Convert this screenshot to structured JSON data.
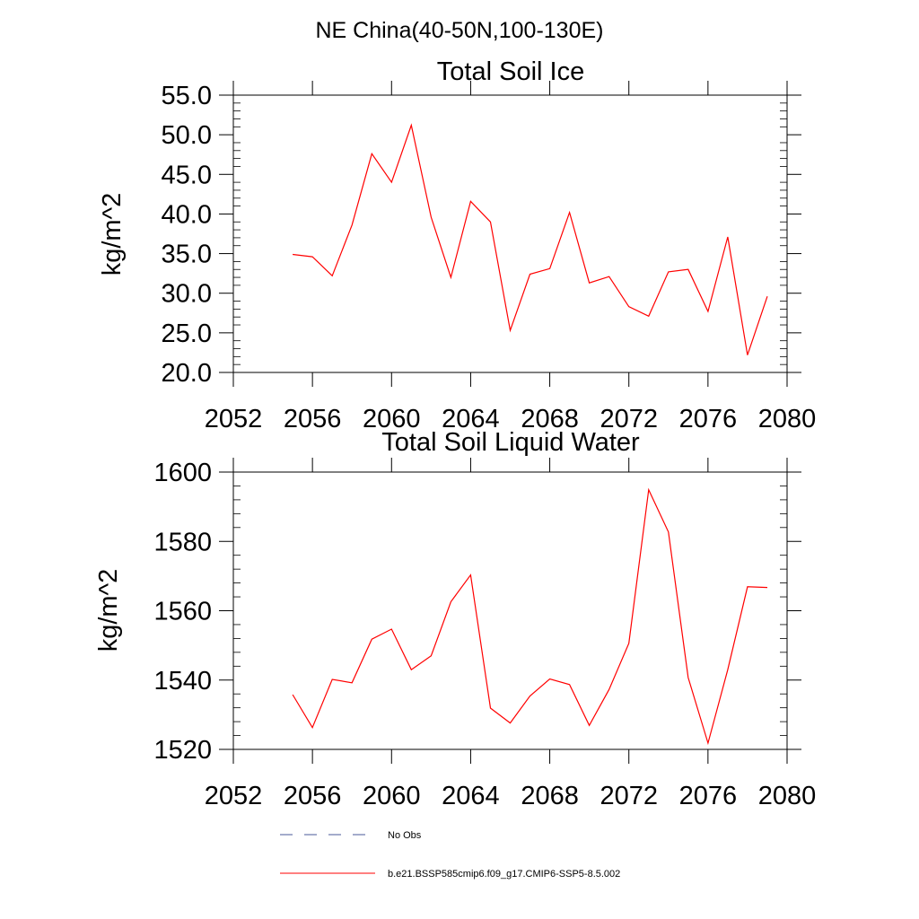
{
  "figure_title": "NE China(40-50N,100-130E)",
  "chart_data": [
    {
      "type": "line",
      "title": "Total Soil Ice",
      "xlabel": "",
      "ylabel": "kg/m^2",
      "xlim": [
        2052,
        2080
      ],
      "ylim": [
        20.0,
        55.0
      ],
      "xticks": [
        "2052",
        "2056",
        "2060",
        "2064",
        "2068",
        "2072",
        "2076",
        "2080"
      ],
      "yticks": [
        "20.0",
        "25.0",
        "30.0",
        "35.0",
        "40.0",
        "45.0",
        "50.0",
        "55.0"
      ],
      "series": [
        {
          "name": "b.e21.BSSP585cmip6.f09_g17.CMIP6-SSP5-8.5.002",
          "color": "#ff0000",
          "x": [
            2055,
            2056,
            2057,
            2058,
            2059,
            2060,
            2061,
            2062,
            2063,
            2064,
            2065,
            2066,
            2067,
            2068,
            2069,
            2070,
            2071,
            2072,
            2073,
            2074,
            2075,
            2076,
            2077,
            2078,
            2079
          ],
          "values": [
            34.9,
            34.6,
            32.2,
            38.6,
            47.6,
            44.0,
            51.2,
            39.6,
            32.0,
            41.6,
            39.0,
            25.3,
            32.4,
            33.1,
            40.2,
            31.3,
            32.1,
            28.3,
            27.1,
            32.7,
            33.0,
            27.7,
            37.1,
            22.2,
            29.6
          ]
        }
      ]
    },
    {
      "type": "line",
      "title": "Total Soil Liquid Water",
      "xlabel": "",
      "ylabel": "kg/m^2",
      "xlim": [
        2052,
        2080
      ],
      "ylim": [
        1520,
        1600
      ],
      "xticks": [
        "2052",
        "2056",
        "2060",
        "2064",
        "2068",
        "2072",
        "2076",
        "2080"
      ],
      "yticks": [
        "1520",
        "1540",
        "1560",
        "1580",
        "1600"
      ],
      "series": [
        {
          "name": "b.e21.BSSP585cmip6.f09_g17.CMIP6-SSP5-8.5.002",
          "color": "#ff0000",
          "x": [
            2055,
            2056,
            2057,
            2058,
            2059,
            2060,
            2061,
            2062,
            2063,
            2064,
            2065,
            2066,
            2067,
            2068,
            2069,
            2070,
            2071,
            2072,
            2073,
            2074,
            2075,
            2076,
            2077,
            2078,
            2079
          ],
          "values": [
            1535.8,
            1526.3,
            1540.2,
            1539.2,
            1551.8,
            1554.7,
            1543.0,
            1547.0,
            1562.6,
            1570.3,
            1531.9,
            1527.6,
            1535.4,
            1540.3,
            1538.7,
            1526.9,
            1537.3,
            1550.6,
            1594.9,
            1582.7,
            1540.7,
            1521.8,
            1543.0,
            1566.9,
            1566.7
          ]
        }
      ]
    }
  ],
  "legend": [
    {
      "label": "No Obs",
      "color": "#4a5a9a",
      "style": "dashed"
    },
    {
      "label": "b.e21.BSSP585cmip6.f09_g17.CMIP6-SSP5-8.5.002",
      "color": "#ff0000",
      "style": "solid"
    }
  ]
}
